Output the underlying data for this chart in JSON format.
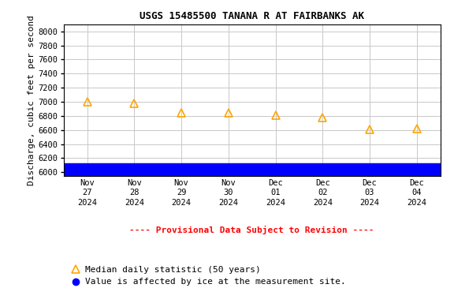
{
  "title": "USGS 15485500 TANANA R AT FAIRBANKS AK",
  "ylabel": "Discharge, cubic feet per second",
  "x_positions": [
    0,
    1,
    2,
    3,
    4,
    5,
    6,
    7
  ],
  "median_values": [
    7000,
    6980,
    6840,
    6840,
    6805,
    6775,
    6610,
    6615
  ],
  "ice_value": 6020,
  "median_color": "#FFA500",
  "ice_color": "#0000FF",
  "background_color": "#FFFFFF",
  "grid_color": "#C8C8C8",
  "ylim": [
    5950,
    8100
  ],
  "yticks": [
    6000,
    6200,
    6400,
    6600,
    6800,
    7000,
    7200,
    7400,
    7600,
    7800,
    8000
  ],
  "provisional_text": "---- Provisional Data Subject to Revision ----",
  "provisional_color": "#FF0000",
  "legend_median_label": "Median daily statistic (50 years)",
  "legend_ice_label": "Value is affected by ice at the measurement site.",
  "title_fontsize": 9,
  "ylabel_fontsize": 8,
  "tick_fontsize": 7.5,
  "legend_fontsize": 8,
  "provisional_fontsize": 8,
  "monospace_font": "DejaVu Sans Mono"
}
